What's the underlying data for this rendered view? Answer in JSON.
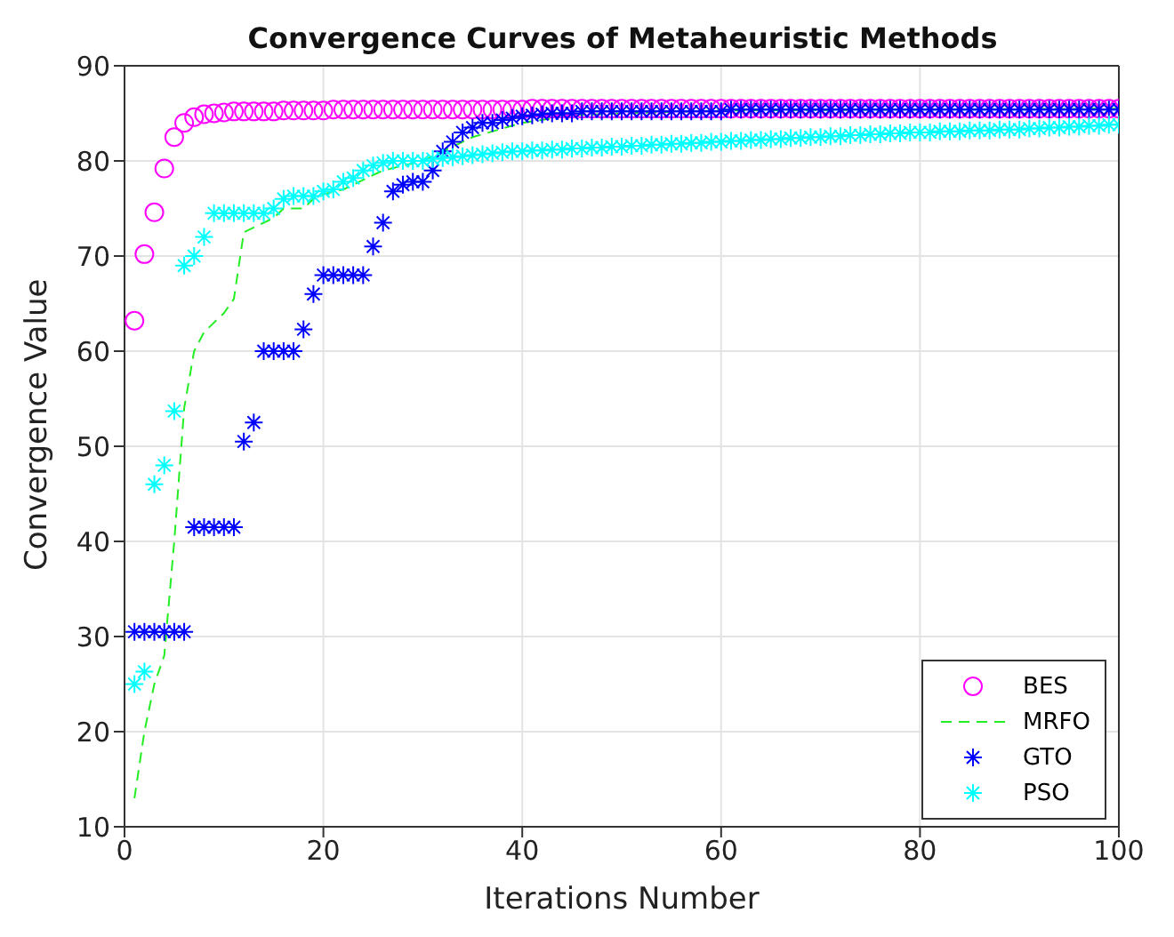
{
  "chart_data": {
    "type": "scatter",
    "title": "Convergence Curves of Metaheuristic Methods",
    "xlabel": "Iterations Number",
    "ylabel": "Convergence Value",
    "x": [
      1,
      2,
      3,
      4,
      5,
      6,
      7,
      8,
      9,
      10,
      11,
      12,
      13,
      14,
      15,
      16,
      17,
      18,
      19,
      20,
      21,
      22,
      23,
      24,
      25,
      26,
      27,
      28,
      29,
      30,
      31,
      32,
      33,
      34,
      35,
      36,
      37,
      38,
      39,
      40,
      41,
      42,
      43,
      44,
      45,
      46,
      47,
      48,
      49,
      50,
      51,
      52,
      53,
      54,
      55,
      56,
      57,
      58,
      59,
      60,
      61,
      62,
      63,
      64,
      65,
      66,
      67,
      68,
      69,
      70,
      71,
      72,
      73,
      74,
      75,
      76,
      77,
      78,
      79,
      80,
      81,
      82,
      83,
      84,
      85,
      86,
      87,
      88,
      89,
      90,
      91,
      92,
      93,
      94,
      95,
      96,
      97,
      98,
      99,
      100
    ],
    "series": [
      {
        "name": "BES",
        "color": "#ff00ff",
        "marker": "circle",
        "values": [
          63.2,
          70.2,
          74.6,
          79.2,
          82.5,
          84.0,
          84.6,
          84.9,
          85.0,
          85.1,
          85.2,
          85.2,
          85.2,
          85.2,
          85.2,
          85.3,
          85.3,
          85.3,
          85.3,
          85.3,
          85.4,
          85.4,
          85.4,
          85.4,
          85.4,
          85.4,
          85.4,
          85.4,
          85.4,
          85.4,
          85.4,
          85.4,
          85.4,
          85.4,
          85.4,
          85.4,
          85.4,
          85.4,
          85.4,
          85.4,
          85.5,
          85.5,
          85.5,
          85.5,
          85.5,
          85.5,
          85.5,
          85.5,
          85.5,
          85.5,
          85.5,
          85.5,
          85.5,
          85.5,
          85.5,
          85.5,
          85.5,
          85.5,
          85.5,
          85.5,
          85.5,
          85.5,
          85.5,
          85.5,
          85.5,
          85.5,
          85.5,
          85.5,
          85.5,
          85.5,
          85.5,
          85.5,
          85.5,
          85.5,
          85.5,
          85.5,
          85.5,
          85.5,
          85.5,
          85.5,
          85.5,
          85.5,
          85.5,
          85.5,
          85.5,
          85.5,
          85.5,
          85.5,
          85.5,
          85.5,
          85.5,
          85.5,
          85.5,
          85.5,
          85.5,
          85.5,
          85.5,
          85.5,
          85.5,
          85.5
        ]
      },
      {
        "name": "MRFO",
        "type": "line",
        "color": "#22ee22",
        "marker": "none",
        "line_style": "dashed",
        "x": [
          1,
          2,
          3,
          4,
          5,
          6,
          7,
          8,
          9,
          10,
          11,
          12,
          13,
          14,
          15,
          16,
          18,
          19,
          20,
          22,
          24,
          26,
          28,
          30,
          32,
          35,
          40,
          45,
          50,
          60,
          100
        ],
        "values": [
          13,
          20,
          25,
          28,
          40,
          54,
          60,
          62,
          63,
          64,
          65.5,
          72.5,
          73,
          73.5,
          74,
          75,
          75,
          76,
          76.5,
          77,
          78,
          79,
          79.5,
          80,
          81,
          82.5,
          84,
          84.8,
          85,
          85.3,
          85.5
        ]
      },
      {
        "name": "GTO",
        "color": "#0000ff",
        "marker": "cross",
        "values": [
          30.5,
          30.5,
          30.5,
          30.5,
          30.5,
          30.5,
          41.5,
          41.5,
          41.5,
          41.5,
          41.5,
          50.5,
          52.5,
          60,
          60,
          60,
          60,
          62.3,
          66,
          68,
          68,
          68,
          68,
          68,
          71,
          73.5,
          76.8,
          77.5,
          77.8,
          77.8,
          79,
          81,
          82,
          83,
          83.5,
          84,
          84,
          84.3,
          84.5,
          84.7,
          84.8,
          84.9,
          85,
          85,
          85,
          85.2,
          85.2,
          85.2,
          85.2,
          85.2,
          85.2,
          85.2,
          85.2,
          85.2,
          85.2,
          85.2,
          85.2,
          85.2,
          85.2,
          85.2,
          85.4,
          85.4,
          85.4,
          85.4,
          85.4,
          85.4,
          85.4,
          85.4,
          85.4,
          85.4,
          85.4,
          85.4,
          85.4,
          85.4,
          85.4,
          85.4,
          85.4,
          85.4,
          85.4,
          85.4,
          85.4,
          85.4,
          85.4,
          85.4,
          85.4,
          85.4,
          85.4,
          85.4,
          85.4,
          85.4,
          85.4,
          85.4,
          85.4,
          85.4,
          85.4,
          85.4,
          85.4,
          85.4,
          85.4,
          85.4
        ]
      },
      {
        "name": "PSO",
        "color": "#00ffff",
        "marker": "cross",
        "values": [
          25,
          26.3,
          46,
          48,
          53.7,
          69,
          70,
          72,
          74.5,
          74.5,
          74.5,
          74.5,
          74.5,
          74.5,
          75,
          76,
          76.3,
          76.3,
          76.3,
          76.8,
          77,
          77.8,
          78.2,
          79,
          79.5,
          79.8,
          80,
          80,
          80,
          80,
          80.2,
          80.3,
          80.4,
          80.5,
          80.6,
          80.7,
          80.8,
          80.9,
          81,
          81,
          81.1,
          81.1,
          81.2,
          81.2,
          81.3,
          81.3,
          81.4,
          81.4,
          81.5,
          81.5,
          81.6,
          81.6,
          81.7,
          81.7,
          81.8,
          81.8,
          81.9,
          81.9,
          82,
          82,
          82.1,
          82.1,
          82.2,
          82.2,
          82.3,
          82.3,
          82.4,
          82.4,
          82.5,
          82.5,
          82.6,
          82.6,
          82.7,
          82.7,
          82.8,
          82.8,
          82.9,
          82.9,
          83,
          83,
          83,
          83.1,
          83.1,
          83.1,
          83.2,
          83.2,
          83.2,
          83.3,
          83.3,
          83.3,
          83.4,
          83.4,
          83.5,
          83.5,
          83.6,
          83.6,
          83.7,
          83.7,
          83.8,
          83.8
        ]
      }
    ],
    "xlim": [
      0,
      100
    ],
    "xticks": [
      0,
      20,
      40,
      60,
      80,
      100
    ],
    "ylim": [
      10,
      90
    ],
    "yticks": [
      10,
      20,
      30,
      40,
      50,
      60,
      70,
      80,
      90
    ],
    "grid": true,
    "legend": "bottom right"
  }
}
